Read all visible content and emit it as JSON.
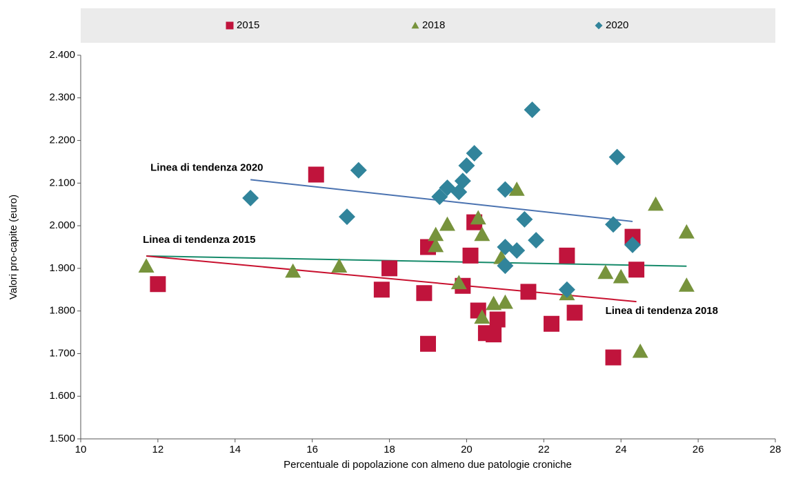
{
  "chart_data": {
    "type": "scatter",
    "x_label": "Percentuale di popolazione con almeno due patologie croniche",
    "y_label": "Valori pro-capite (euro)",
    "xlim": [
      10,
      28
    ],
    "xticks": [
      10,
      12,
      14,
      16,
      18,
      20,
      22,
      24,
      26,
      28
    ],
    "ylim": [
      1500,
      2400
    ],
    "yticks": [
      {
        "value": 1500,
        "label": "1.500"
      },
      {
        "value": 1600,
        "label": "1.600"
      },
      {
        "value": 1700,
        "label": "1.700"
      },
      {
        "value": 1800,
        "label": "1.800"
      },
      {
        "value": 1900,
        "label": "1.900"
      },
      {
        "value": 2000,
        "label": "2.000"
      },
      {
        "value": 2100,
        "label": "2.100"
      },
      {
        "value": 2200,
        "label": "2.200"
      },
      {
        "value": 2300,
        "label": "2.300"
      },
      {
        "value": 2400,
        "label": "2.400"
      }
    ],
    "grid": false,
    "legend": "top",
    "series": [
      {
        "name": "2015",
        "color": "#c0143c",
        "marker": "square",
        "x": [
          12.0,
          16.1,
          17.8,
          18.0,
          18.9,
          19.0,
          19.0,
          19.9,
          20.1,
          20.2,
          20.3,
          20.5,
          20.7,
          20.8,
          21.6,
          22.2,
          22.6,
          22.8,
          23.8,
          24.3,
          24.4
        ],
        "values": [
          1863,
          2120,
          1850,
          1900,
          1842,
          1723,
          1950,
          1859,
          1930,
          2008,
          1801,
          1748,
          1745,
          1780,
          1845,
          1770,
          1930,
          1796,
          1691,
          1974,
          1897
        ]
      },
      {
        "name": "2018",
        "color": "#77933c",
        "marker": "triangle",
        "x": [
          11.7,
          15.5,
          16.7,
          19.2,
          19.2,
          19.5,
          19.8,
          20.3,
          20.4,
          20.4,
          20.7,
          21.0,
          20.9,
          21.3,
          22.6,
          23.6,
          24.0,
          24.5,
          24.9,
          25.7,
          25.7
        ],
        "values": [
          1905,
          1893,
          1905,
          1979,
          1953,
          2003,
          1866,
          2018,
          1979,
          1785,
          1817,
          1820,
          1925,
          2085,
          1840,
          1890,
          1880,
          1705,
          2050,
          1985,
          1860
        ]
      },
      {
        "name": "2020",
        "color": "#31849b",
        "marker": "diamond",
        "x": [
          14.4,
          16.9,
          17.2,
          19.3,
          19.5,
          19.8,
          19.9,
          20.0,
          20.2,
          21.0,
          21.0,
          21.0,
          21.3,
          21.5,
          21.8,
          21.7,
          22.6,
          23.8,
          23.9,
          24.3
        ],
        "values": [
          2065,
          2021,
          2130,
          2068,
          2089,
          2079,
          2105,
          2141,
          2170,
          1950,
          1906,
          2085,
          1942,
          2015,
          1966,
          2272,
          1850,
          2003,
          2161,
          1955
        ]
      }
    ],
    "trendlines": [
      {
        "label": "Linea di tendenza 2020",
        "color": "#4a72b0",
        "x": [
          14.4,
          24.3
        ],
        "values": [
          2108,
          2010
        ]
      },
      {
        "label": "Linea di tendenza 2015",
        "color": "#168a6a",
        "x": [
          11.7,
          25.7
        ],
        "values": [
          1929,
          1905
        ]
      },
      {
        "label": "Linea di tendenza 2018",
        "color": "#c8102e",
        "x": [
          11.7,
          24.4
        ],
        "values": [
          1929,
          1822
        ]
      }
    ]
  }
}
